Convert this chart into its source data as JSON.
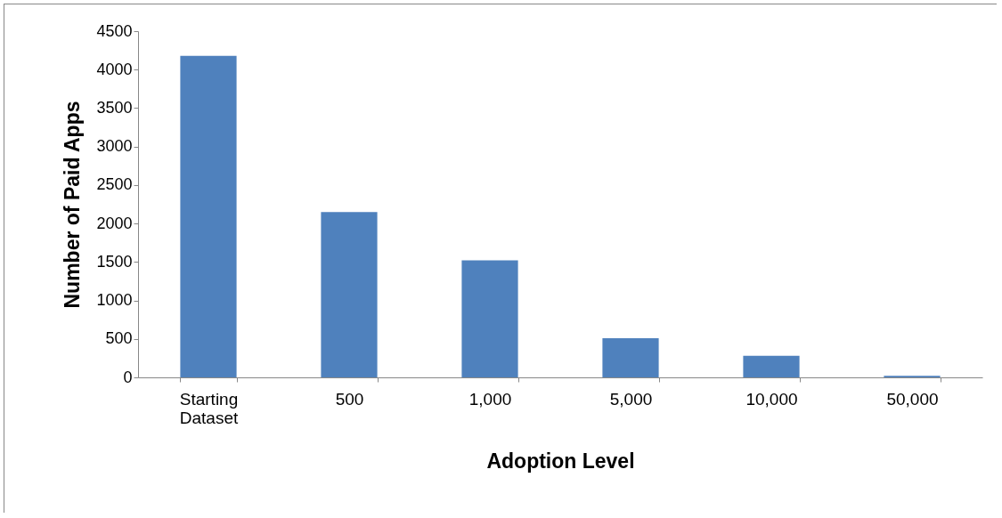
{
  "chart_data": {
    "type": "bar",
    "xlabel": "Adoption Level",
    "ylabel": "Number of Paid Apps",
    "categories": [
      "Starting Dataset",
      "500",
      "1,000",
      "5,000",
      "10,000",
      "50,000"
    ],
    "values": [
      4180,
      2150,
      1520,
      510,
      280,
      20
    ],
    "color": "#4f81bd",
    "ylim": [
      0,
      4500
    ],
    "yticks": [
      0,
      500,
      1000,
      1500,
      2000,
      2500,
      3000,
      3500,
      4000,
      4500
    ],
    "grid": false
  }
}
